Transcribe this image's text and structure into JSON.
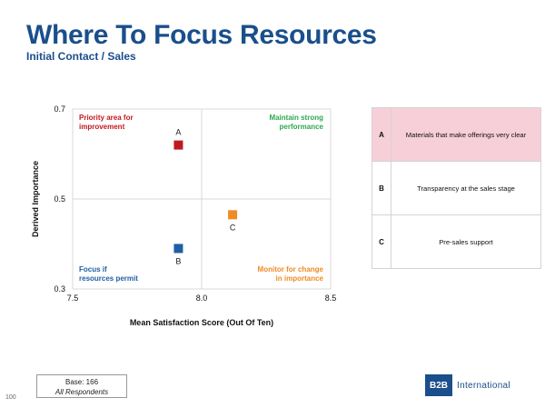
{
  "header": {
    "title": "Where To Focus Resources",
    "subtitle": "Initial Contact / Sales"
  },
  "chart_data": {
    "type": "scatter",
    "xlabel": "Mean Satisfaction Score (Out Of Ten)",
    "ylabel": "Derived Importance",
    "xlim": [
      7.5,
      8.5
    ],
    "ylim": [
      0.3,
      0.7
    ],
    "x_ticks": [
      "7.5",
      "8.0",
      "8.5"
    ],
    "y_ticks": [
      "0.3",
      "0.5",
      "0.7"
    ],
    "x_divider": 8.0,
    "y_divider": 0.5,
    "grid": false,
    "points": [
      {
        "label": "A",
        "x": 7.91,
        "y": 0.62,
        "color": "#c0191f",
        "label_pos": "above"
      },
      {
        "label": "B",
        "x": 7.91,
        "y": 0.39,
        "color": "#1f5fa4",
        "label_pos": "below"
      },
      {
        "label": "C",
        "x": 8.12,
        "y": 0.465,
        "color": "#f08a24",
        "label_pos": "below"
      }
    ],
    "quadrants": {
      "top_left": {
        "text": [
          "Priority area for",
          "improvement"
        ],
        "color": "#c0191f"
      },
      "top_right": {
        "text": [
          "Maintain strong",
          "performance"
        ],
        "color": "#2fa84f"
      },
      "bottom_left": {
        "text": [
          "Focus if",
          "resources permit"
        ],
        "color": "#1f5fa4"
      },
      "bottom_right": {
        "text": [
          "Monitor for change",
          "in importance"
        ],
        "color": "#f08a24"
      }
    }
  },
  "legend": {
    "rows": [
      {
        "letter": "A",
        "text": "Materials that make offerings very clear"
      },
      {
        "letter": "B",
        "text": "Transparency at the sales stage"
      },
      {
        "letter": "C",
        "text": "Pre-sales support"
      }
    ],
    "highlight_color": "#f7cfd8"
  },
  "footer": {
    "base": "Base: 166",
    "base_sub": "All Respondents",
    "page_number": "100",
    "logo_mark": "B2B",
    "logo_text": "International"
  },
  "colors": {
    "brand": "#1a4f8b"
  }
}
